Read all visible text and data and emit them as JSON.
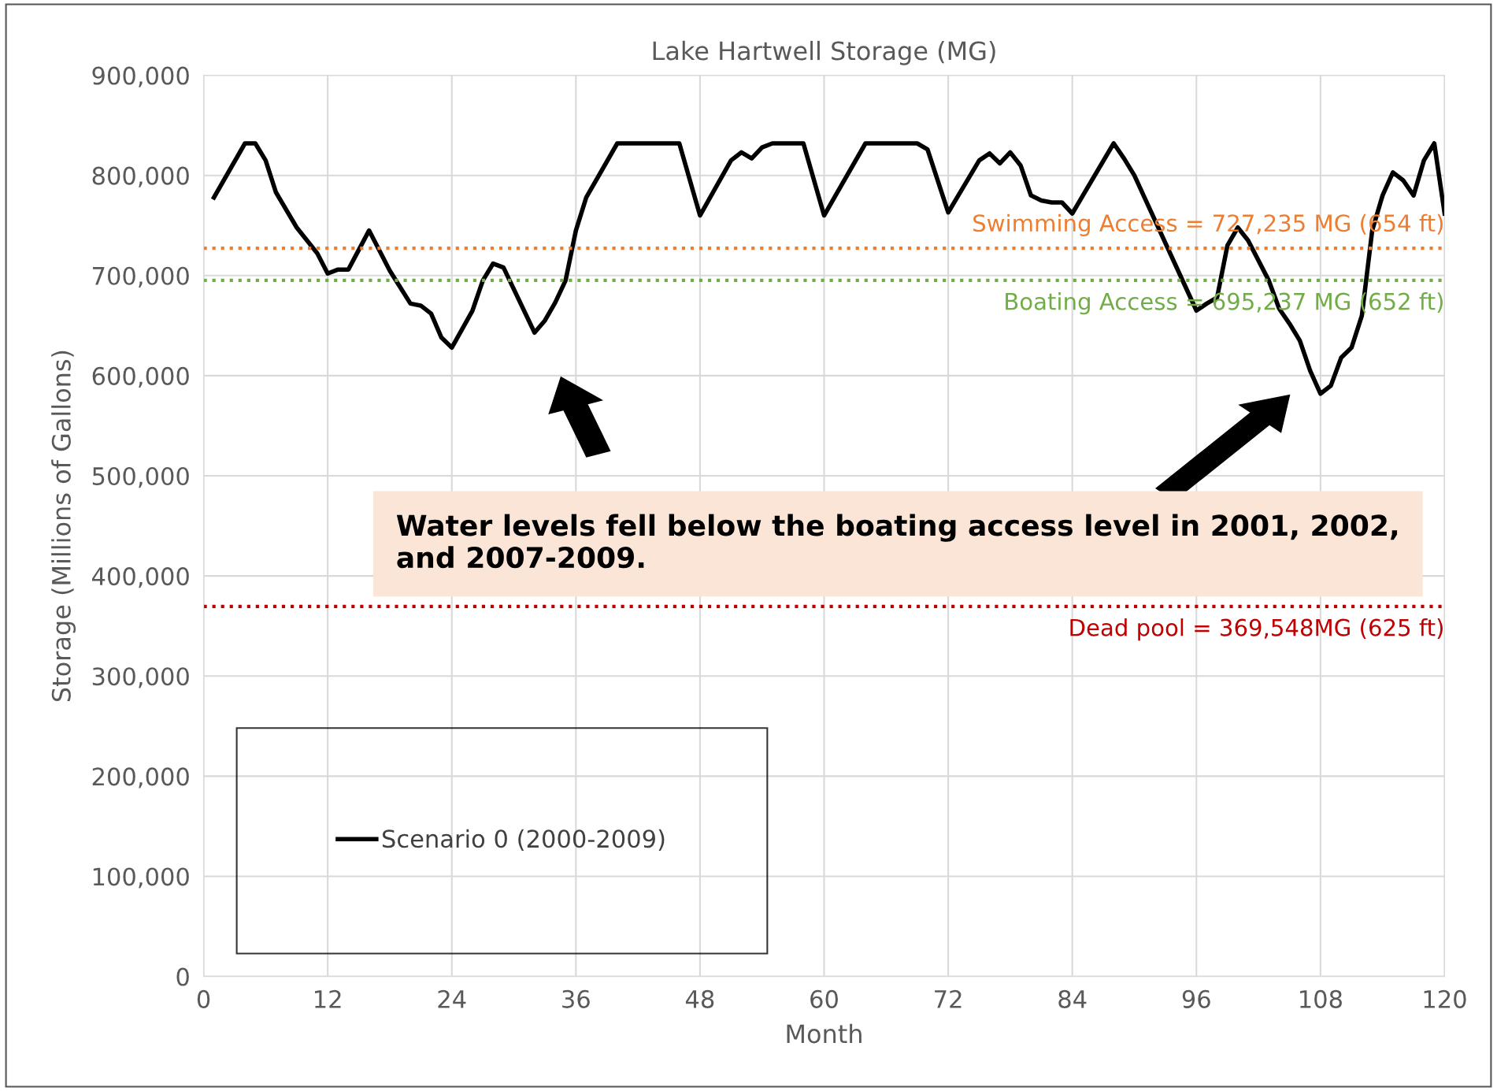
{
  "chart_data": {
    "type": "line",
    "title": "Lake Hartwell Storage (MG)",
    "xlabel": "Month",
    "ylabel": "Storage (Millions of Gallons)",
    "xlim": [
      0,
      120
    ],
    "xticks": [
      0,
      12,
      24,
      36,
      48,
      60,
      72,
      84,
      96,
      108,
      120
    ],
    "ylim": [
      0,
      900000
    ],
    "yticks": [
      {
        "value": 0,
        "label": "0"
      },
      {
        "value": 100000,
        "label": "100,000"
      },
      {
        "value": 200000,
        "label": "200,000"
      },
      {
        "value": 300000,
        "label": "300,000"
      },
      {
        "value": 400000,
        "label": "400,000"
      },
      {
        "value": 500000,
        "label": "500,000"
      },
      {
        "value": 600000,
        "label": "600,000"
      },
      {
        "value": 700000,
        "label": "700,000"
      },
      {
        "value": 800000,
        "label": "800,000"
      },
      {
        "value": 900000,
        "label": "900,000"
      }
    ],
    "grid": true,
    "legend": "bottom left",
    "marker": "none",
    "line_style": "solid",
    "series": [
      {
        "name": "Scenario 0 (2000-2009)",
        "color": "#000000",
        "x": [
          1,
          4,
          5,
          6,
          7,
          9,
          11,
          12,
          13,
          14,
          16,
          18,
          20,
          21,
          22,
          23,
          24,
          26,
          27,
          28,
          29,
          32,
          33,
          34,
          35,
          36,
          37,
          40,
          46,
          48,
          51,
          52,
          53,
          54,
          55,
          58,
          60,
          64,
          69,
          70,
          72,
          75,
          76,
          77,
          78,
          79,
          80,
          81,
          82,
          83,
          84,
          88,
          89,
          90,
          96,
          97,
          98,
          99,
          100,
          101,
          103,
          104,
          105,
          106,
          107,
          108,
          109,
          110,
          111,
          112,
          113,
          114,
          115,
          116,
          117,
          118,
          119,
          120
        ],
        "values": [
          778000,
          832000,
          832000,
          815000,
          783000,
          748000,
          722000,
          702000,
          706000,
          706000,
          745000,
          705000,
          672000,
          670000,
          662000,
          638000,
          628000,
          665000,
          695000,
          712000,
          708000,
          643000,
          655000,
          673000,
          695000,
          745000,
          778000,
          832000,
          832000,
          760000,
          815000,
          823000,
          817000,
          828000,
          832000,
          832000,
          760000,
          832000,
          832000,
          826000,
          763000,
          815000,
          822000,
          812000,
          823000,
          810000,
          780000,
          775000,
          773000,
          773000,
          762000,
          832000,
          817000,
          800000,
          665000,
          672000,
          678000,
          730000,
          748000,
          735000,
          695000,
          667000,
          652000,
          635000,
          605000,
          582000,
          590000,
          618000,
          628000,
          660000,
          745000,
          780000,
          803000,
          795000,
          780000,
          815000,
          832000,
          762000
        ]
      }
    ],
    "ref_lines": [
      {
        "axis": "y",
        "value": 727235,
        "label": "Swimming Access = 727,235 MG (654 ft)",
        "color": "#ed7d31",
        "line_style": "dotted"
      },
      {
        "axis": "y",
        "value": 695237,
        "label": "Boating Access = 695,237 MG (652 ft)",
        "color": "#70ad47",
        "line_style": "dotted"
      },
      {
        "axis": "y",
        "value": 369548,
        "label": "Dead pool = 369,548MG (625 ft)",
        "color": "#c00000",
        "line_style": "dotted"
      }
    ],
    "annotations": [
      "Water levels fell below the boating access level in 2001, 2002, and 2007-2009."
    ]
  }
}
